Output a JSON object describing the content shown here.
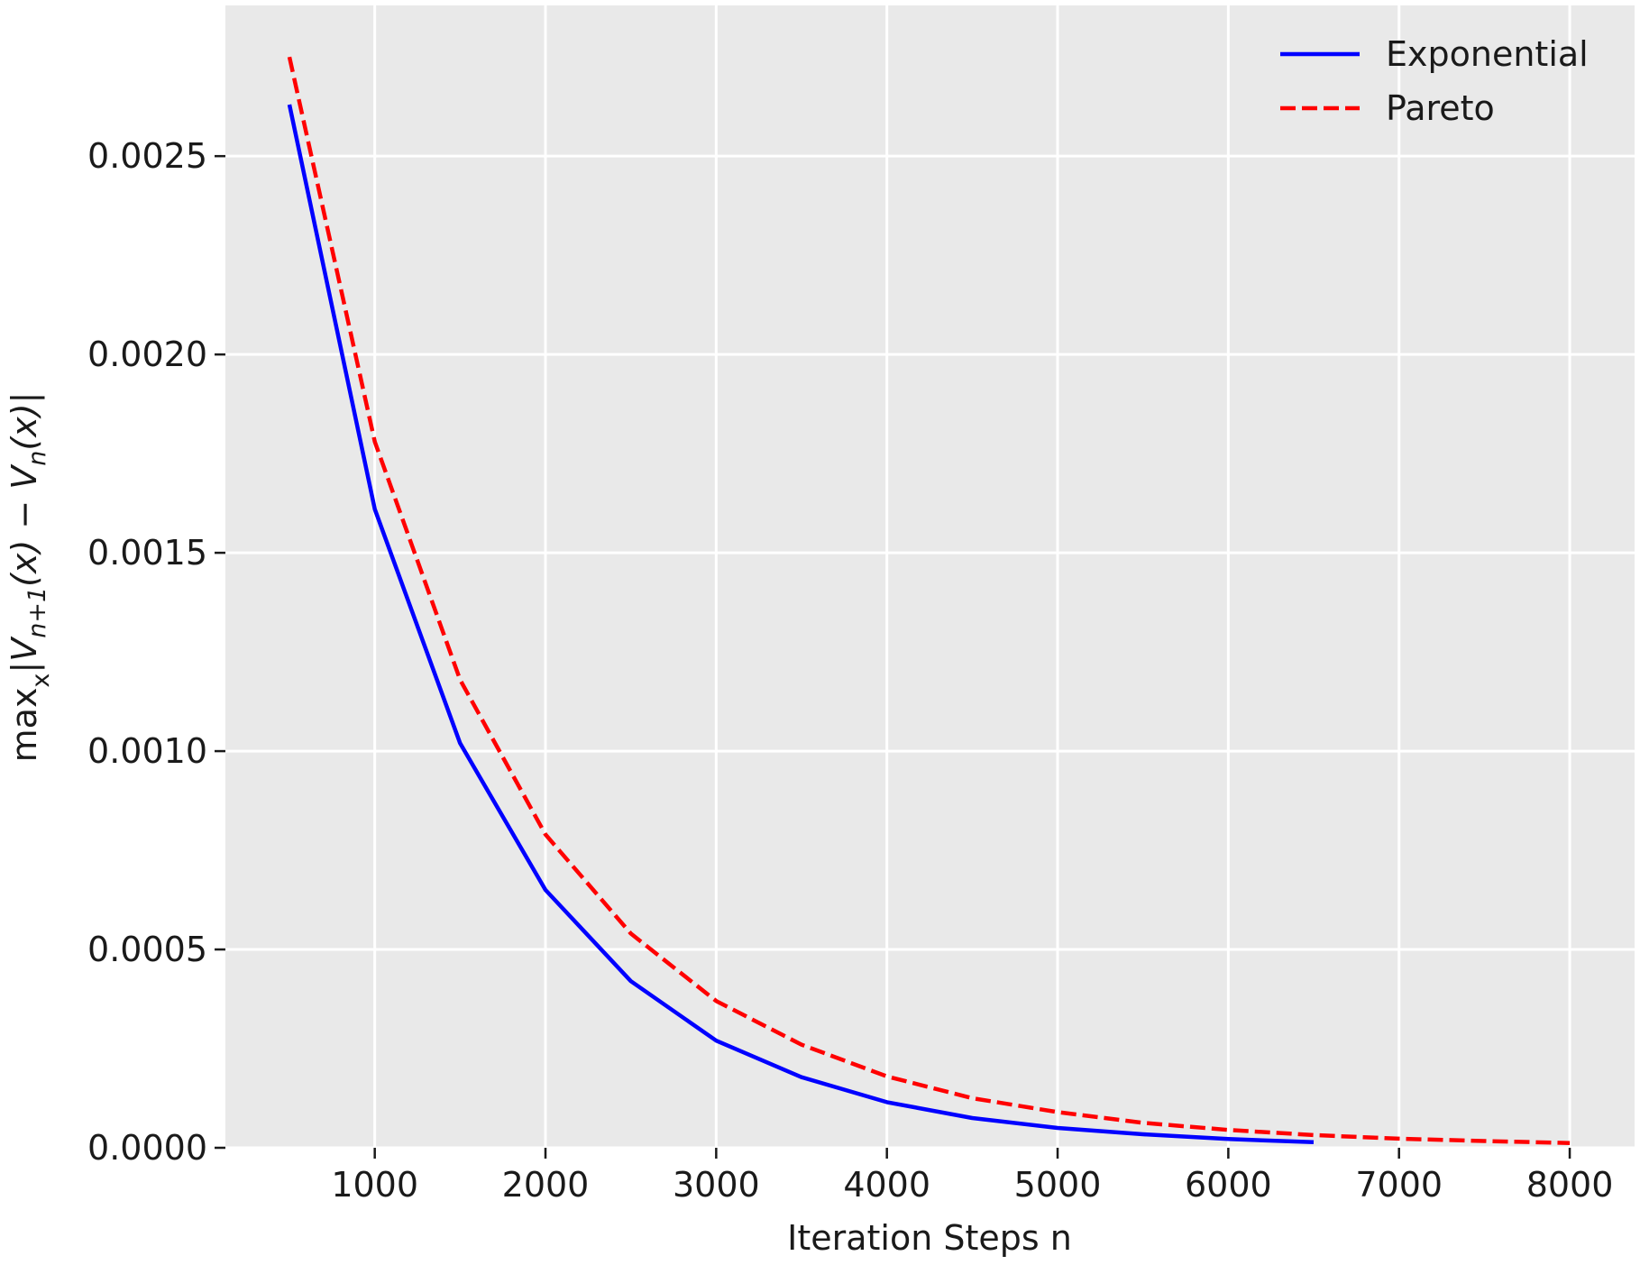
{
  "chart_data": {
    "type": "line",
    "xlabel": "Iteration Steps n",
    "ylabel_parts": {
      "max": "max",
      "max_sub": "x",
      "bar_open": "|",
      "v1": "V",
      "v1_sub": "n+1",
      "arg1": "(x) − ",
      "v2": "V",
      "v2_sub": "n",
      "arg2": "(x)",
      "bar_close": "|"
    },
    "xlim": [
      125,
      8380
    ],
    "ylim": [
      0.0,
      0.00288
    ],
    "xticks": [
      1000,
      2000,
      3000,
      4000,
      5000,
      6000,
      7000,
      8000
    ],
    "xtick_labels": [
      "1000",
      "2000",
      "3000",
      "4000",
      "5000",
      "6000",
      "7000",
      "8000"
    ],
    "yticks": [
      0.0,
      0.0005,
      0.001,
      0.0015,
      0.002,
      0.0025
    ],
    "ytick_labels": [
      "0.0000",
      "0.0005",
      "0.0010",
      "0.0015",
      "0.0020",
      "0.0025"
    ],
    "grid": true,
    "legend_position": "top-right",
    "background": "#e9e9e9",
    "series": [
      {
        "name": "Exponential",
        "color": "#0000ff",
        "style": "solid",
        "x": [
          500,
          1000,
          1500,
          2000,
          2500,
          3000,
          3500,
          4000,
          4500,
          5000,
          5500,
          6000,
          6500
        ],
        "y": [
          0.00263,
          0.00161,
          0.00102,
          0.00065,
          0.00042,
          0.00027,
          0.000178,
          0.000115,
          7.5e-05,
          5e-05,
          3.4e-05,
          2.2e-05,
          1.4e-05
        ]
      },
      {
        "name": "Pareto",
        "color": "#ff0000",
        "style": "dashed",
        "x": [
          500,
          1000,
          1500,
          2000,
          2500,
          3000,
          3500,
          4000,
          4500,
          5000,
          5500,
          6000,
          6500,
          7000,
          7500,
          8000
        ],
        "y": [
          0.00275,
          0.00178,
          0.00118,
          0.00079,
          0.00054,
          0.00037,
          0.00026,
          0.00018,
          0.000125,
          9e-05,
          6.3e-05,
          4.5e-05,
          3.2e-05,
          2.3e-05,
          1.7e-05,
          1.2e-05
        ]
      }
    ]
  }
}
